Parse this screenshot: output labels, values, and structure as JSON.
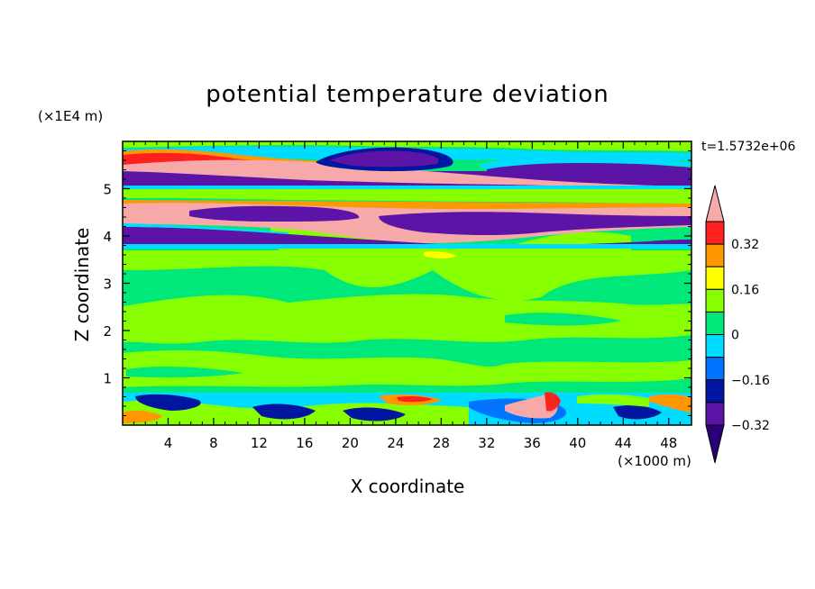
{
  "chart_data": {
    "type": "heatmap",
    "title": "potential temperature deviation",
    "xlabel": "X coordinate",
    "ylabel": "Z coordinate",
    "x_unit": "(×1000 m)",
    "y_unit": "(×1E4 m)",
    "time_label": "t=1.5732e+06",
    "xlim": [
      0,
      50
    ],
    "ylim": [
      0,
      6
    ],
    "x_ticks": [
      4,
      8,
      12,
      16,
      20,
      24,
      28,
      32,
      36,
      40,
      44,
      48
    ],
    "y_ticks": [
      1,
      2,
      3,
      4,
      5
    ],
    "colorbar": {
      "levels": [
        -0.4,
        -0.32,
        -0.24,
        -0.16,
        -0.08,
        0,
        0.08,
        0.16,
        0.24,
        0.32,
        0.4
      ],
      "labeled_ticks": [
        "0.32",
        "0.16",
        "0",
        "−0.16",
        "−0.32"
      ],
      "colors": [
        "#2a007a",
        "#5b14a6",
        "#0016a0",
        "#0074ff",
        "#00dcff",
        "#00e87a",
        "#88ff00",
        "#ffff00",
        "#ff9800",
        "#ff2020",
        "#f7a9a9"
      ],
      "extend": "both"
    },
    "bands": [
      {
        "z": [
          5.0,
          5.35
        ],
        "value": -0.45
      },
      {
        "z": [
          5.35,
          5.55
        ],
        "value": 0.45
      },
      {
        "z": [
          5.55,
          5.75
        ],
        "value": 0.3
      },
      {
        "z": [
          4.45,
          4.85
        ],
        "value": 0.45
      },
      {
        "z": [
          4.2,
          4.45
        ],
        "value": -0.45
      },
      {
        "z": [
          3.8,
          4.2
        ],
        "value": -0.4
      },
      {
        "z": [
          0.75,
          3.8
        ],
        "value": 0.02
      },
      {
        "z": [
          0.0,
          0.75
        ],
        "value": -0.1
      }
    ]
  }
}
